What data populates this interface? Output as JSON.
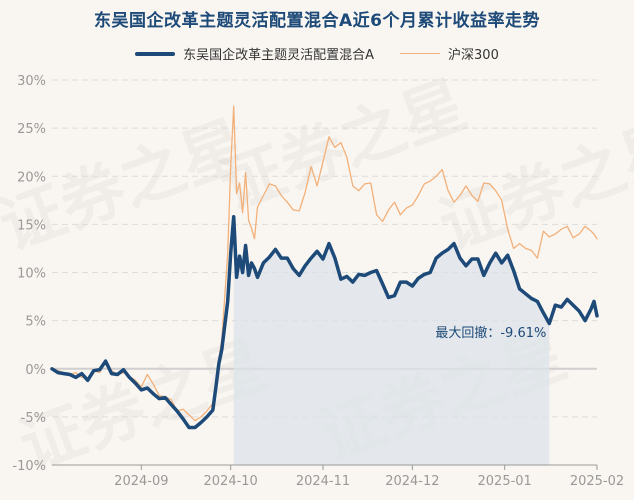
{
  "chart_data": {
    "type": "line",
    "title": "东吴国企改革主题灵活配置混合A近6个月累计收益率走势",
    "xlabel": "",
    "ylabel": "",
    "ylim": [
      -10,
      30
    ],
    "yticks": [
      -10,
      -5,
      0,
      5,
      10,
      15,
      20,
      25,
      30
    ],
    "ytick_labels": [
      "-10%",
      "-5%",
      "0%",
      "5%",
      "10%",
      "15%",
      "20%",
      "25%",
      "30%"
    ],
    "xlim": [
      "2024-08-02",
      "2025-02-01"
    ],
    "xticks": [
      "2024-09-01",
      "2024-10-01",
      "2024-11-01",
      "2024-12-01",
      "2025-01-01",
      "2025-02-01"
    ],
    "xtick_labels": [
      "2024-09",
      "2024-10",
      "2024-11",
      "2024-12",
      "2025-01",
      "2025-02"
    ],
    "grid": "horizontal dashed",
    "legend": "top-center",
    "series": [
      {
        "name": "东吴国企改革主题灵活配置混合A",
        "color": "#1d4a78",
        "points": [
          [
            "2024-08-02",
            0
          ],
          [
            "2024-08-04",
            -0.4
          ],
          [
            "2024-08-06",
            -0.5
          ],
          [
            "2024-08-08",
            -0.6
          ],
          [
            "2024-08-10",
            -0.9
          ],
          [
            "2024-08-12",
            -0.5
          ],
          [
            "2024-08-14",
            -1.2
          ],
          [
            "2024-08-16",
            -0.2
          ],
          [
            "2024-08-18",
            -0.1
          ],
          [
            "2024-08-20",
            0.8
          ],
          [
            "2024-08-22",
            -0.5
          ],
          [
            "2024-08-24",
            -0.6
          ],
          [
            "2024-08-26",
            -0.1
          ],
          [
            "2024-08-28",
            -0.9
          ],
          [
            "2024-08-30",
            -1.5
          ],
          [
            "2024-09-01",
            -2.2
          ],
          [
            "2024-09-03",
            -2.0
          ],
          [
            "2024-09-05",
            -2.6
          ],
          [
            "2024-09-07",
            -3.1
          ],
          [
            "2024-09-09",
            -3.0
          ],
          [
            "2024-09-11",
            -3.7
          ],
          [
            "2024-09-13",
            -4.4
          ],
          [
            "2024-09-15",
            -5.2
          ],
          [
            "2024-09-17",
            -6.1
          ],
          [
            "2024-09-19",
            -6.1
          ],
          [
            "2024-09-21",
            -5.6
          ],
          [
            "2024-09-23",
            -5.0
          ],
          [
            "2024-09-25",
            -4.3
          ],
          [
            "2024-09-26",
            -2.0
          ],
          [
            "2024-09-27",
            0.5
          ],
          [
            "2024-09-28",
            2.0
          ],
          [
            "2024-09-30",
            7.0
          ],
          [
            "2024-10-01",
            12.0
          ],
          [
            "2024-10-02",
            15.8
          ],
          [
            "2024-10-03",
            9.5
          ],
          [
            "2024-10-04",
            11.7
          ],
          [
            "2024-10-05",
            10.0
          ],
          [
            "2024-10-06",
            12.8
          ],
          [
            "2024-10-07",
            9.7
          ],
          [
            "2024-10-08",
            11.0
          ],
          [
            "2024-10-09",
            10.4
          ],
          [
            "2024-10-10",
            9.5
          ],
          [
            "2024-10-12",
            11.0
          ],
          [
            "2024-10-14",
            11.6
          ],
          [
            "2024-10-16",
            12.4
          ],
          [
            "2024-10-18",
            11.5
          ],
          [
            "2024-10-20",
            11.5
          ],
          [
            "2024-10-22",
            10.4
          ],
          [
            "2024-10-24",
            9.7
          ],
          [
            "2024-10-26",
            10.7
          ],
          [
            "2024-10-28",
            11.5
          ],
          [
            "2024-10-30",
            12.2
          ],
          [
            "2024-11-01",
            11.4
          ],
          [
            "2024-11-03",
            13.0
          ],
          [
            "2024-11-05",
            11.5
          ],
          [
            "2024-11-07",
            9.3
          ],
          [
            "2024-11-09",
            9.6
          ],
          [
            "2024-11-11",
            9.0
          ],
          [
            "2024-11-13",
            9.8
          ],
          [
            "2024-11-15",
            9.7
          ],
          [
            "2024-11-17",
            10.0
          ],
          [
            "2024-11-19",
            10.2
          ],
          [
            "2024-11-21",
            8.8
          ],
          [
            "2024-11-23",
            7.4
          ],
          [
            "2024-11-25",
            7.6
          ],
          [
            "2024-11-27",
            9.0
          ],
          [
            "2024-11-29",
            9.0
          ],
          [
            "2024-12-01",
            8.6
          ],
          [
            "2024-12-03",
            9.4
          ],
          [
            "2024-12-05",
            9.8
          ],
          [
            "2024-12-07",
            10.0
          ],
          [
            "2024-12-09",
            11.5
          ],
          [
            "2024-12-11",
            12.0
          ],
          [
            "2024-12-13",
            12.4
          ],
          [
            "2024-12-15",
            13.0
          ],
          [
            "2024-12-17",
            11.5
          ],
          [
            "2024-12-19",
            10.7
          ],
          [
            "2024-12-21",
            11.4
          ],
          [
            "2024-12-23",
            11.4
          ],
          [
            "2024-12-25",
            9.7
          ],
          [
            "2024-12-27",
            11.0
          ],
          [
            "2024-12-29",
            12.0
          ],
          [
            "2024-12-31",
            11.0
          ],
          [
            "2025-01-02",
            11.8
          ],
          [
            "2025-01-04",
            10.2
          ],
          [
            "2025-01-06",
            8.3
          ],
          [
            "2025-01-08",
            7.8
          ],
          [
            "2025-01-10",
            7.3
          ],
          [
            "2025-01-12",
            7.0
          ],
          [
            "2025-01-14",
            5.8
          ],
          [
            "2025-01-16",
            4.7
          ],
          [
            "2025-01-18",
            6.6
          ],
          [
            "2025-01-20",
            6.4
          ],
          [
            "2025-01-22",
            7.2
          ],
          [
            "2025-01-24",
            6.6
          ],
          [
            "2025-01-26",
            6.0
          ],
          [
            "2025-01-28",
            5.0
          ],
          [
            "2025-01-30",
            6.2
          ],
          [
            "2025-01-31",
            7.0
          ],
          [
            "2025-02-01",
            5.5
          ]
        ]
      },
      {
        "name": "沪深300",
        "color": "#f2b07a",
        "points": [
          [
            "2024-08-02",
            0
          ],
          [
            "2024-08-04",
            -0.2
          ],
          [
            "2024-08-06",
            -0.4
          ],
          [
            "2024-08-08",
            -0.6
          ],
          [
            "2024-08-10",
            -0.4
          ],
          [
            "2024-08-12",
            -0.9
          ],
          [
            "2024-08-14",
            -1.0
          ],
          [
            "2024-08-16",
            -0.2
          ],
          [
            "2024-08-18",
            -0.4
          ],
          [
            "2024-08-20",
            0.8
          ],
          [
            "2024-08-22",
            -0.2
          ],
          [
            "2024-08-24",
            -0.6
          ],
          [
            "2024-08-26",
            -0.4
          ],
          [
            "2024-08-28",
            -0.8
          ],
          [
            "2024-08-30",
            -1.2
          ],
          [
            "2024-09-01",
            -1.9
          ],
          [
            "2024-09-03",
            -0.6
          ],
          [
            "2024-09-05",
            -1.6
          ],
          [
            "2024-09-07",
            -2.8
          ],
          [
            "2024-09-09",
            -2.9
          ],
          [
            "2024-09-11",
            -3.2
          ],
          [
            "2024-09-13",
            -4.4
          ],
          [
            "2024-09-15",
            -4.2
          ],
          [
            "2024-09-17",
            -4.8
          ],
          [
            "2024-09-19",
            -5.4
          ],
          [
            "2024-09-21",
            -5.0
          ],
          [
            "2024-09-23",
            -4.4
          ],
          [
            "2024-09-25",
            -3.6
          ],
          [
            "2024-09-26",
            -1.8
          ],
          [
            "2024-09-27",
            1.0
          ],
          [
            "2024-09-28",
            3.0
          ],
          [
            "2024-09-30",
            12.0
          ],
          [
            "2024-10-01",
            21.0
          ],
          [
            "2024-10-02",
            27.3
          ],
          [
            "2024-10-03",
            18.2
          ],
          [
            "2024-10-04",
            19.3
          ],
          [
            "2024-10-05",
            16.2
          ],
          [
            "2024-10-06",
            20.4
          ],
          [
            "2024-10-07",
            15.4
          ],
          [
            "2024-10-08",
            14.6
          ],
          [
            "2024-10-09",
            13.5
          ],
          [
            "2024-10-10",
            16.8
          ],
          [
            "2024-10-12",
            18.0
          ],
          [
            "2024-10-14",
            19.2
          ],
          [
            "2024-10-16",
            19.0
          ],
          [
            "2024-10-18",
            18.0
          ],
          [
            "2024-10-20",
            17.3
          ],
          [
            "2024-10-22",
            16.5
          ],
          [
            "2024-10-24",
            16.4
          ],
          [
            "2024-10-26",
            18.3
          ],
          [
            "2024-10-28",
            21.0
          ],
          [
            "2024-10-30",
            19.0
          ],
          [
            "2024-11-01",
            21.5
          ],
          [
            "2024-11-03",
            24.1
          ],
          [
            "2024-11-05",
            23.0
          ],
          [
            "2024-11-07",
            23.5
          ],
          [
            "2024-11-09",
            22.0
          ],
          [
            "2024-11-11",
            19.0
          ],
          [
            "2024-11-13",
            18.5
          ],
          [
            "2024-11-15",
            19.2
          ],
          [
            "2024-11-17",
            19.3
          ],
          [
            "2024-11-19",
            16.0
          ],
          [
            "2024-11-21",
            15.3
          ],
          [
            "2024-11-23",
            16.5
          ],
          [
            "2024-11-25",
            17.3
          ],
          [
            "2024-11-27",
            16.0
          ],
          [
            "2024-11-29",
            16.7
          ],
          [
            "2024-12-01",
            17.0
          ],
          [
            "2024-12-03",
            18.0
          ],
          [
            "2024-12-05",
            19.2
          ],
          [
            "2024-12-07",
            19.5
          ],
          [
            "2024-12-09",
            20.0
          ],
          [
            "2024-12-11",
            20.7
          ],
          [
            "2024-12-13",
            18.5
          ],
          [
            "2024-12-15",
            17.3
          ],
          [
            "2024-12-17",
            18.0
          ],
          [
            "2024-12-19",
            19.0
          ],
          [
            "2024-12-21",
            18.0
          ],
          [
            "2024-12-23",
            17.4
          ],
          [
            "2024-12-25",
            19.3
          ],
          [
            "2024-12-27",
            19.2
          ],
          [
            "2024-12-29",
            18.5
          ],
          [
            "2024-12-31",
            17.5
          ],
          [
            "2025-01-02",
            14.5
          ],
          [
            "2025-01-04",
            12.5
          ],
          [
            "2025-01-06",
            13.0
          ],
          [
            "2025-01-08",
            12.5
          ],
          [
            "2025-01-10",
            12.3
          ],
          [
            "2025-01-12",
            11.5
          ],
          [
            "2025-01-14",
            14.3
          ],
          [
            "2025-01-16",
            13.7
          ],
          [
            "2025-01-18",
            14.0
          ],
          [
            "2025-01-20",
            14.5
          ],
          [
            "2025-01-22",
            14.8
          ],
          [
            "2025-01-24",
            13.6
          ],
          [
            "2025-01-26",
            14.0
          ],
          [
            "2025-01-28",
            14.8
          ],
          [
            "2025-01-30",
            14.3
          ],
          [
            "2025-01-31",
            14.0
          ],
          [
            "2025-02-01",
            13.5
          ]
        ]
      }
    ],
    "annotation": {
      "text": "最大回撤：-9.61%",
      "drawdown_range": [
        "2024-10-02",
        "2025-01-16"
      ]
    },
    "watermark": "证券之星"
  }
}
